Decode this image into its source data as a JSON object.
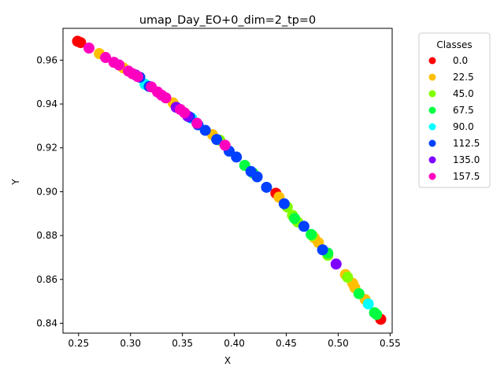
{
  "chart_data": {
    "type": "scatter",
    "title": "umap_Day_EO+0_dim=2_tp=0",
    "xlabel": "X",
    "ylabel": "Y",
    "xlim": [
      0.235,
      0.552
    ],
    "ylim": [
      0.8355,
      0.9745
    ],
    "xticks": [
      0.25,
      0.3,
      0.35,
      0.4,
      0.45,
      0.5,
      0.55
    ],
    "xtick_labels": [
      "0.25",
      "0.30",
      "0.35",
      "0.40",
      "0.45",
      "0.50",
      "0.55"
    ],
    "yticks": [
      0.84,
      0.86,
      0.88,
      0.9,
      0.92,
      0.94,
      0.96
    ],
    "ytick_labels": [
      "0.84",
      "0.86",
      "0.88",
      "0.90",
      "0.92",
      "0.94",
      "0.96"
    ],
    "grid": false,
    "legend": {
      "title": "Classes",
      "placement": "outside-right-top",
      "entries": [
        {
          "label": "0.0",
          "color": "#ff0000"
        },
        {
          "label": "22.5",
          "color": "#ffbf00"
        },
        {
          "label": "45.0",
          "color": "#80ff00"
        },
        {
          "label": "67.5",
          "color": "#00ff40"
        },
        {
          "label": "90.0",
          "color": "#00ffff"
        },
        {
          "label": "112.5",
          "color": "#0040ff"
        },
        {
          "label": "135.0",
          "color": "#8000ff"
        },
        {
          "label": "157.5",
          "color": "#ff00bf"
        }
      ]
    },
    "series": [
      {
        "name": "0.0",
        "color": "#ff0000",
        "points": [
          [
            0.249,
            0.9686
          ],
          [
            0.252,
            0.968
          ],
          [
            0.44,
            0.8993
          ],
          [
            0.541,
            0.8418
          ]
        ]
      },
      {
        "name": "22.5",
        "color": "#ffbf00",
        "points": [
          [
            0.27,
            0.963
          ],
          [
            0.293,
            0.9565
          ],
          [
            0.341,
            0.9405
          ],
          [
            0.379,
            0.926
          ],
          [
            0.443,
            0.8975
          ],
          [
            0.477,
            0.879
          ],
          [
            0.481,
            0.8768
          ],
          [
            0.507,
            0.8622
          ],
          [
            0.514,
            0.8582
          ],
          [
            0.516,
            0.8562
          ],
          [
            0.526,
            0.8508
          ]
        ]
      },
      {
        "name": "45.0",
        "color": "#80ff00",
        "points": [
          [
            0.386,
            0.9235
          ],
          [
            0.451,
            0.893
          ],
          [
            0.456,
            0.8892
          ],
          [
            0.461,
            0.8862
          ],
          [
            0.475,
            0.88
          ],
          [
            0.49,
            0.871
          ],
          [
            0.509,
            0.861
          ]
        ]
      },
      {
        "name": "67.5",
        "color": "#00ff40",
        "points": [
          [
            0.41,
            0.912
          ],
          [
            0.418,
            0.9085
          ],
          [
            0.458,
            0.8878
          ],
          [
            0.474,
            0.8805
          ],
          [
            0.49,
            0.872
          ],
          [
            0.52,
            0.8535
          ],
          [
            0.535,
            0.8448
          ],
          [
            0.537,
            0.844
          ]
        ]
      },
      {
        "name": "90.0",
        "color": "#00ffff",
        "points": [
          [
            0.314,
            0.949
          ],
          [
            0.359,
            0.9335
          ],
          [
            0.529,
            0.8488
          ]
        ]
      },
      {
        "name": "112.5",
        "color": "#0040ff",
        "points": [
          [
            0.309,
            0.9522
          ],
          [
            0.318,
            0.948
          ],
          [
            0.357,
            0.934
          ],
          [
            0.365,
            0.9305
          ],
          [
            0.372,
            0.928
          ],
          [
            0.383,
            0.9238
          ],
          [
            0.395,
            0.9185
          ],
          [
            0.402,
            0.9158
          ],
          [
            0.416,
            0.9092
          ],
          [
            0.422,
            0.9068
          ],
          [
            0.431,
            0.902
          ],
          [
            0.448,
            0.8945
          ],
          [
            0.467,
            0.8842
          ],
          [
            0.485,
            0.8735
          ]
        ]
      },
      {
        "name": "135.0",
        "color": "#8000ff",
        "points": [
          [
            0.305,
            0.9532
          ],
          [
            0.344,
            0.9385
          ],
          [
            0.355,
            0.9345
          ],
          [
            0.498,
            0.867
          ]
        ]
      },
      {
        "name": "157.5",
        "color": "#ff00bf",
        "points": [
          [
            0.26,
            0.9655
          ],
          [
            0.276,
            0.9612
          ],
          [
            0.284,
            0.959
          ],
          [
            0.289,
            0.9578
          ],
          [
            0.298,
            0.955
          ],
          [
            0.302,
            0.9538
          ],
          [
            0.307,
            0.9525
          ],
          [
            0.32,
            0.9478
          ],
          [
            0.326,
            0.9455
          ],
          [
            0.33,
            0.944
          ],
          [
            0.334,
            0.9428
          ],
          [
            0.348,
            0.9375
          ],
          [
            0.352,
            0.936
          ],
          [
            0.364,
            0.9312
          ],
          [
            0.391,
            0.9212
          ]
        ]
      }
    ]
  }
}
